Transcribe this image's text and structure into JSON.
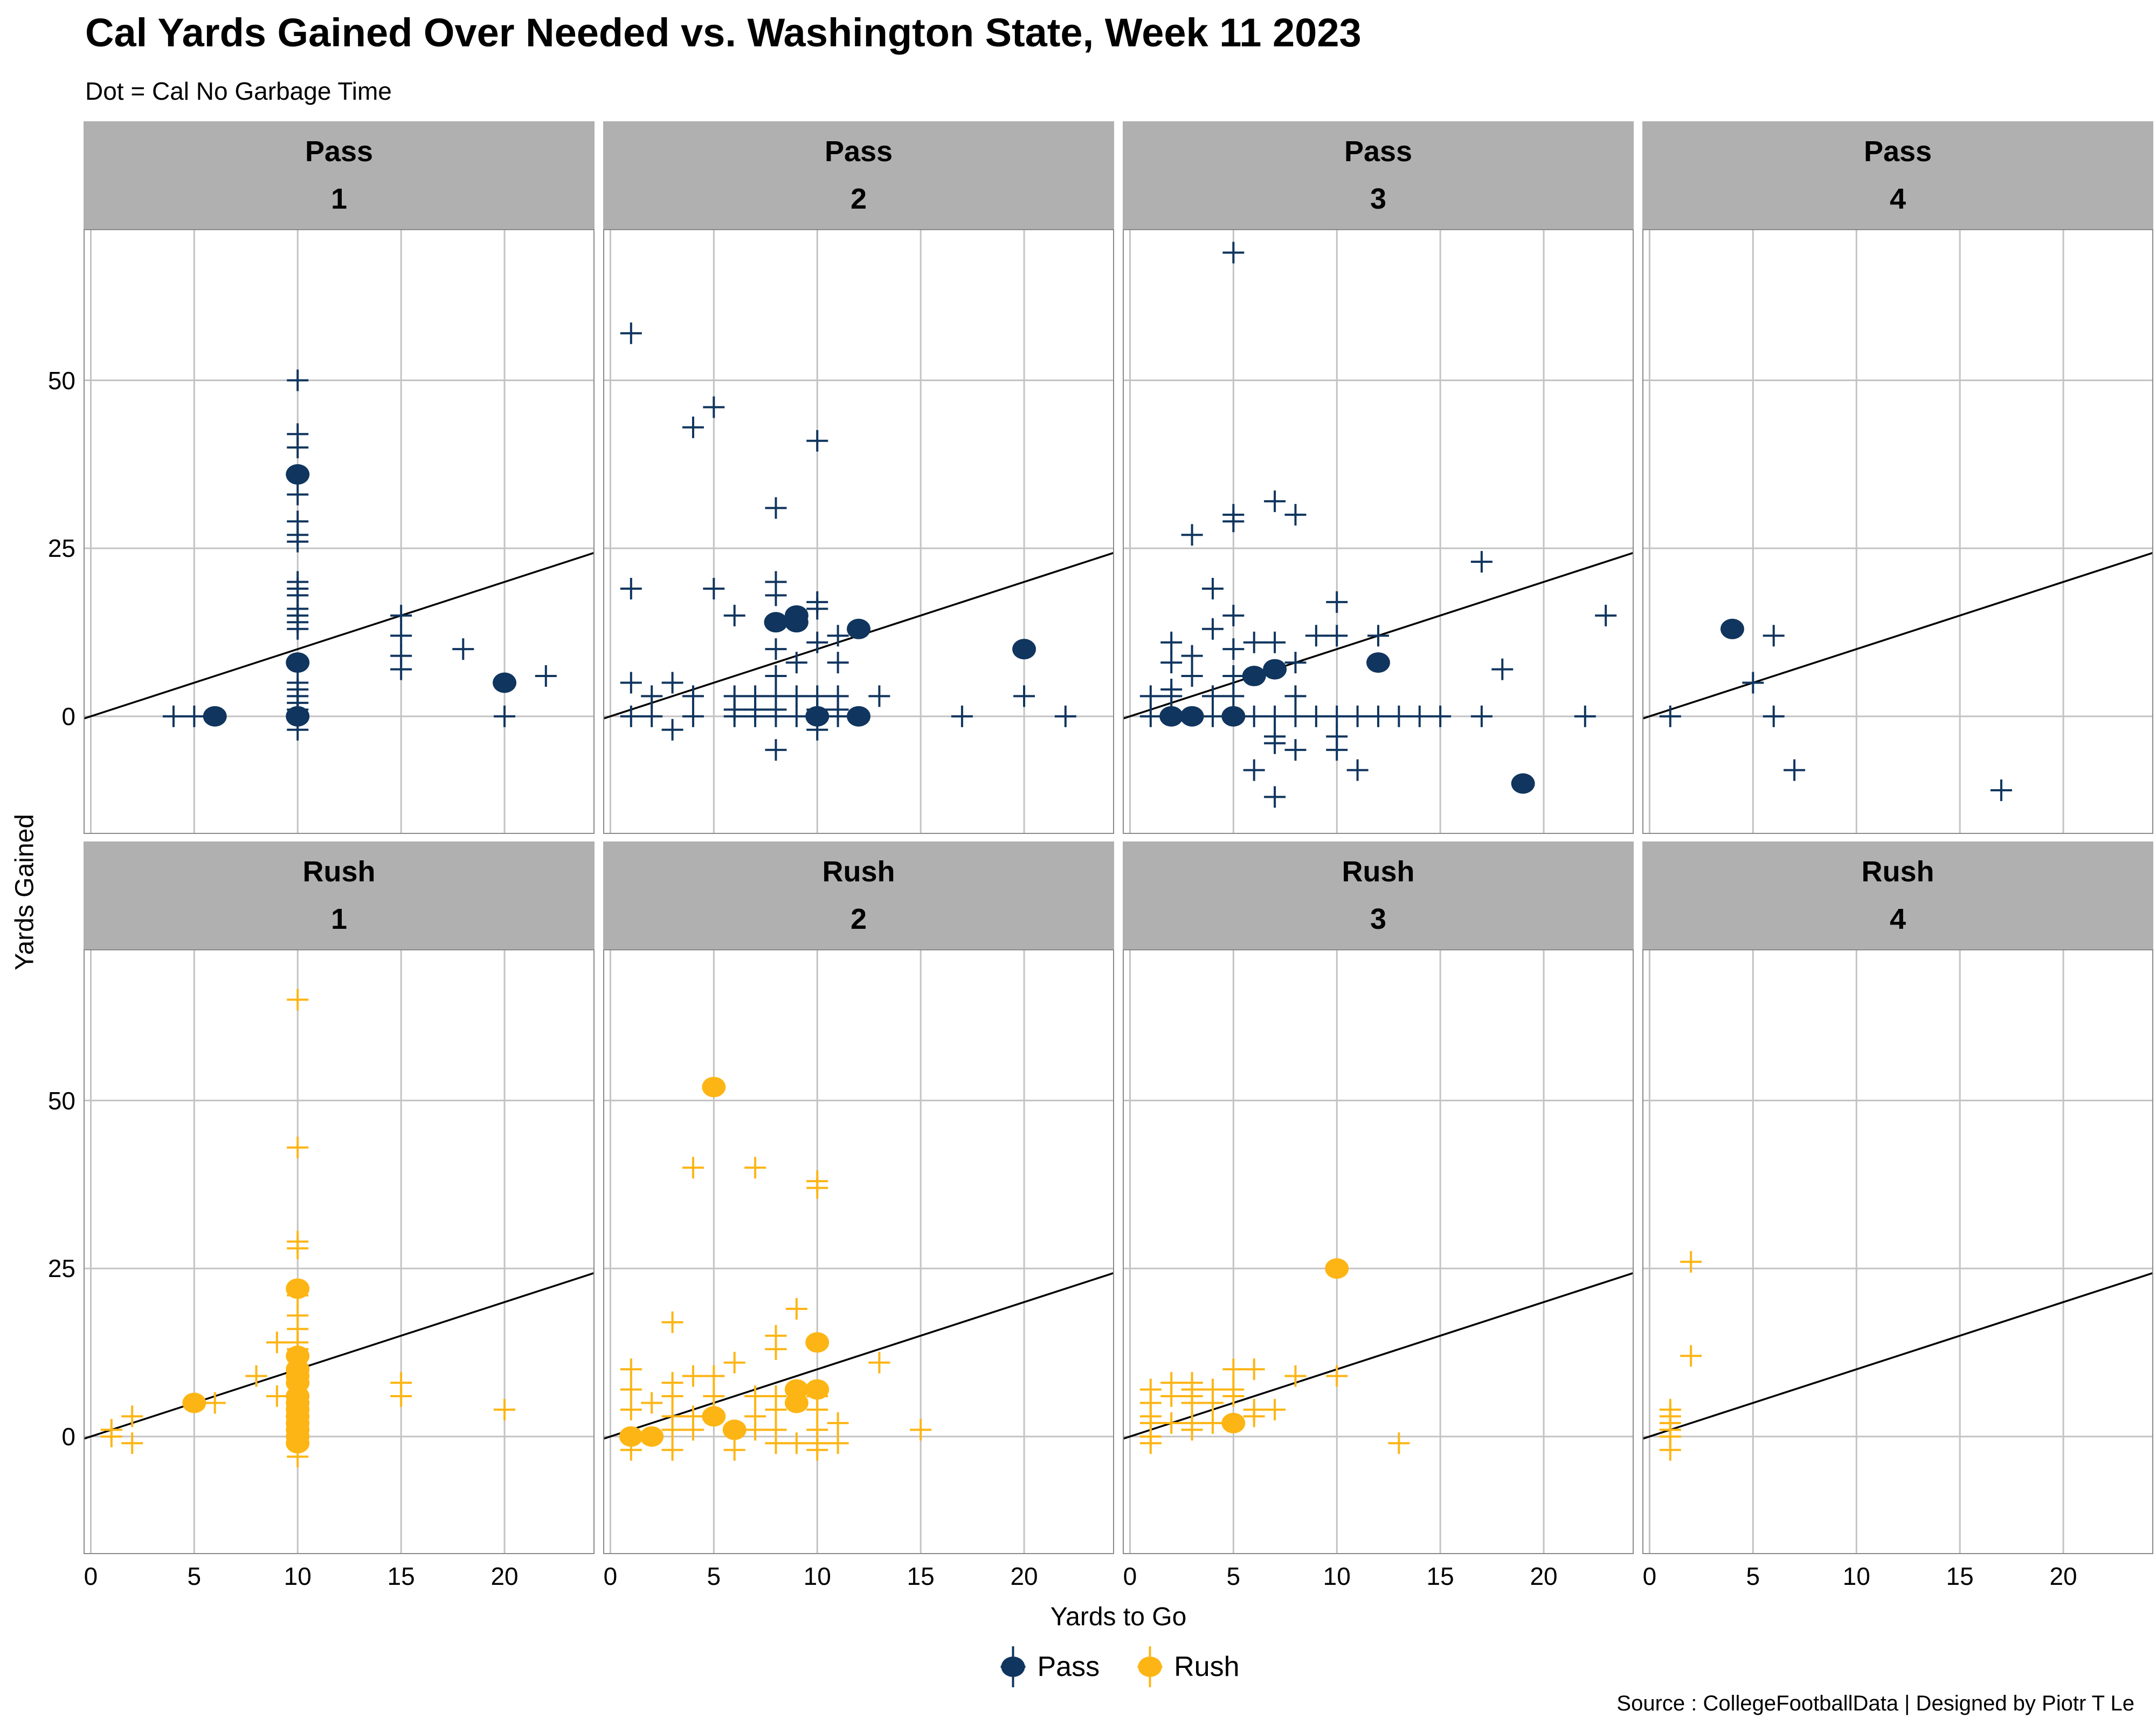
{
  "title": "Cal Yards Gained Over Needed vs. Washington State, Week 11 2023",
  "subtitle": "Dot = Cal No Garbage Time",
  "caption": "Source : CollegeFootballData | Designed by Piotr T Le",
  "legend": [
    {
      "label": "Pass",
      "color": "#10355E"
    },
    {
      "label": "Rush",
      "color": "#FDB515"
    }
  ],
  "colors": {
    "pass": "#10355E",
    "rush": "#FDB515",
    "strip_bg": "#B0B0B0",
    "gridline": "#C3C3C3",
    "panel_border": "#8A8A8A",
    "reference_line": "#000000"
  },
  "chart_data": {
    "type": "scatter",
    "title": "Cal Yards Gained Over Needed vs. Washington State, Week 11 2023",
    "subtitle": "Dot = Cal No Garbage Time",
    "xlabel": "Yards to Go",
    "ylabel": "Yards Gained",
    "x_ticks": [
      0,
      5,
      10,
      15,
      20
    ],
    "y_ticks": [
      0,
      25,
      50
    ],
    "xlim": [
      -0.35,
      24.35
    ],
    "ylim": [
      -17.5,
      72.5
    ],
    "grid": "major-only",
    "legend_position": "bottom",
    "reference_line": "y = x (yards gained = yards to go)",
    "marker_note": "dot = no garbage time play, plus = other play",
    "facet_rows": [
      "Pass",
      "Rush"
    ],
    "facet_cols": [
      "1",
      "2",
      "3",
      "4"
    ],
    "facets": [
      {
        "group": "Pass",
        "down": "1",
        "dots": [
          [
            6,
            0
          ],
          [
            10,
            36
          ],
          [
            10,
            8
          ],
          [
            10,
            0
          ],
          [
            20,
            5
          ]
        ],
        "plus": [
          [
            4,
            0
          ],
          [
            5,
            0
          ],
          [
            10,
            50
          ],
          [
            10,
            42
          ],
          [
            10,
            40
          ],
          [
            10,
            33
          ],
          [
            10,
            29
          ],
          [
            10,
            27
          ],
          [
            10,
            26
          ],
          [
            10,
            20
          ],
          [
            10,
            19
          ],
          [
            10,
            18
          ],
          [
            10,
            16
          ],
          [
            10,
            15
          ],
          [
            10,
            14
          ],
          [
            10,
            13
          ],
          [
            10,
            5
          ],
          [
            10,
            4
          ],
          [
            10,
            3
          ],
          [
            10,
            2
          ],
          [
            10,
            1
          ],
          [
            10,
            0
          ],
          [
            10,
            -2
          ],
          [
            15,
            15
          ],
          [
            15,
            12
          ],
          [
            15,
            9
          ],
          [
            15,
            7
          ],
          [
            18,
            10
          ],
          [
            20,
            0
          ],
          [
            22,
            6
          ]
        ]
      },
      {
        "group": "Pass",
        "down": "2",
        "dots": [
          [
            8,
            14
          ],
          [
            9,
            15
          ],
          [
            9,
            14
          ],
          [
            12,
            13
          ],
          [
            10,
            0
          ],
          [
            12,
            0
          ],
          [
            20,
            10
          ]
        ],
        "plus": [
          [
            1,
            57
          ],
          [
            5,
            46
          ],
          [
            4,
            43
          ],
          [
            10,
            41
          ],
          [
            8,
            31
          ],
          [
            8,
            20
          ],
          [
            1,
            19
          ],
          [
            5,
            19
          ],
          [
            8,
            18
          ],
          [
            10,
            17
          ],
          [
            10,
            16
          ],
          [
            6,
            15
          ],
          [
            11,
            12
          ],
          [
            10,
            11
          ],
          [
            8,
            10
          ],
          [
            9,
            8
          ],
          [
            11,
            8
          ],
          [
            8,
            6
          ],
          [
            1,
            5
          ],
          [
            3,
            5
          ],
          [
            2,
            3
          ],
          [
            4,
            3
          ],
          [
            6,
            3
          ],
          [
            7,
            3
          ],
          [
            8,
            3
          ],
          [
            9,
            3
          ],
          [
            10,
            3
          ],
          [
            11,
            3
          ],
          [
            13,
            3
          ],
          [
            20,
            3
          ],
          [
            6,
            1
          ],
          [
            7,
            1
          ],
          [
            8,
            1
          ],
          [
            10,
            1
          ],
          [
            11,
            1
          ],
          [
            1,
            0
          ],
          [
            2,
            0
          ],
          [
            4,
            0
          ],
          [
            6,
            0
          ],
          [
            7,
            0
          ],
          [
            8,
            0
          ],
          [
            9,
            0
          ],
          [
            11,
            0
          ],
          [
            17,
            0
          ],
          [
            22,
            0
          ],
          [
            3,
            -2
          ],
          [
            10,
            -2
          ],
          [
            8,
            -5
          ]
        ]
      },
      {
        "group": "Pass",
        "down": "3",
        "dots": [
          [
            2,
            0
          ],
          [
            3,
            0
          ],
          [
            5,
            0
          ],
          [
            6,
            6
          ],
          [
            7,
            7
          ],
          [
            12,
            8
          ],
          [
            19,
            -10
          ]
        ],
        "plus": [
          [
            5,
            69
          ],
          [
            7,
            32
          ],
          [
            5,
            30
          ],
          [
            8,
            30
          ],
          [
            5,
            29
          ],
          [
            3,
            27
          ],
          [
            17,
            23
          ],
          [
            4,
            19
          ],
          [
            10,
            17
          ],
          [
            5,
            15
          ],
          [
            23,
            15
          ],
          [
            4,
            13
          ],
          [
            9,
            12
          ],
          [
            10,
            12
          ],
          [
            12,
            12
          ],
          [
            2,
            11
          ],
          [
            6,
            11
          ],
          [
            7,
            11
          ],
          [
            5,
            10
          ],
          [
            3,
            9
          ],
          [
            2,
            8
          ],
          [
            8,
            8
          ],
          [
            18,
            7
          ],
          [
            3,
            6
          ],
          [
            5,
            6
          ],
          [
            2,
            4
          ],
          [
            1,
            3
          ],
          [
            2,
            3
          ],
          [
            4,
            3
          ],
          [
            5,
            3
          ],
          [
            8,
            3
          ],
          [
            1,
            0
          ],
          [
            4,
            0
          ],
          [
            6,
            0
          ],
          [
            7,
            0
          ],
          [
            8,
            0
          ],
          [
            9,
            0
          ],
          [
            10,
            0
          ],
          [
            11,
            0
          ],
          [
            12,
            0
          ],
          [
            13,
            0
          ],
          [
            14,
            0
          ],
          [
            15,
            0
          ],
          [
            17,
            0
          ],
          [
            22,
            0
          ],
          [
            7,
            -3
          ],
          [
            10,
            -3
          ],
          [
            7,
            -4
          ],
          [
            8,
            -5
          ],
          [
            10,
            -5
          ],
          [
            6,
            -8
          ],
          [
            11,
            -8
          ],
          [
            7,
            -12
          ]
        ]
      },
      {
        "group": "Pass",
        "down": "4",
        "dots": [
          [
            4,
            13
          ]
        ],
        "plus": [
          [
            6,
            12
          ],
          [
            5,
            5
          ],
          [
            1,
            0
          ],
          [
            6,
            0
          ],
          [
            7,
            -8
          ],
          [
            17,
            -11
          ]
        ]
      },
      {
        "group": "Rush",
        "down": "1",
        "dots": [
          [
            5,
            5
          ],
          [
            10,
            22
          ],
          [
            10,
            12
          ],
          [
            10,
            10
          ],
          [
            10,
            9
          ],
          [
            10,
            8
          ],
          [
            10,
            6
          ],
          [
            10,
            5
          ],
          [
            10,
            4
          ],
          [
            10,
            3
          ],
          [
            10,
            2
          ],
          [
            10,
            1
          ],
          [
            10,
            0
          ],
          [
            10,
            -1
          ]
        ],
        "plus": [
          [
            10,
            65
          ],
          [
            10,
            43
          ],
          [
            10,
            29
          ],
          [
            10,
            28
          ],
          [
            10,
            21
          ],
          [
            10,
            18
          ],
          [
            10,
            16
          ],
          [
            10,
            14
          ],
          [
            9,
            14
          ],
          [
            10,
            13
          ],
          [
            8,
            9
          ],
          [
            15,
            8
          ],
          [
            9,
            6
          ],
          [
            15,
            6
          ],
          [
            6,
            5
          ],
          [
            20,
            4
          ],
          [
            2,
            3
          ],
          [
            1,
            1
          ],
          [
            1,
            0
          ],
          [
            2,
            -1
          ],
          [
            10,
            -3
          ]
        ]
      },
      {
        "group": "Rush",
        "down": "2",
        "dots": [
          [
            5,
            52
          ],
          [
            10,
            14
          ],
          [
            9,
            7
          ],
          [
            10,
            7
          ],
          [
            9,
            5
          ],
          [
            5,
            3
          ],
          [
            6,
            1
          ],
          [
            1,
            0
          ],
          [
            2,
            0
          ]
        ],
        "plus": [
          [
            4,
            40
          ],
          [
            7,
            40
          ],
          [
            10,
            38
          ],
          [
            10,
            37
          ],
          [
            9,
            19
          ],
          [
            3,
            17
          ],
          [
            8,
            15
          ],
          [
            8,
            13
          ],
          [
            6,
            11
          ],
          [
            13,
            11
          ],
          [
            1,
            10
          ],
          [
            4,
            9
          ],
          [
            5,
            9
          ],
          [
            3,
            8
          ],
          [
            1,
            7
          ],
          [
            2,
            5
          ],
          [
            5,
            6
          ],
          [
            7,
            6
          ],
          [
            8,
            6
          ],
          [
            10,
            6
          ],
          [
            3,
            6
          ],
          [
            1,
            4
          ],
          [
            8,
            4
          ],
          [
            10,
            4
          ],
          [
            3,
            3
          ],
          [
            4,
            3
          ],
          [
            7,
            3
          ],
          [
            3,
            1
          ],
          [
            4,
            1
          ],
          [
            7,
            1
          ],
          [
            8,
            1
          ],
          [
            10,
            1
          ],
          [
            11,
            2
          ],
          [
            15,
            1
          ],
          [
            1,
            -2
          ],
          [
            3,
            -2
          ],
          [
            6,
            -2
          ],
          [
            8,
            -1
          ],
          [
            9,
            -1
          ],
          [
            10,
            -1
          ],
          [
            10,
            -2
          ],
          [
            11,
            -1
          ]
        ]
      },
      {
        "group": "Rush",
        "down": "3",
        "dots": [
          [
            10,
            25
          ],
          [
            5,
            2
          ]
        ],
        "plus": [
          [
            5,
            10
          ],
          [
            6,
            10
          ],
          [
            8,
            9
          ],
          [
            10,
            9
          ],
          [
            2,
            8
          ],
          [
            3,
            8
          ],
          [
            1,
            7
          ],
          [
            3,
            7
          ],
          [
            4,
            7
          ],
          [
            5,
            7
          ],
          [
            2,
            6
          ],
          [
            3,
            6
          ],
          [
            5,
            6
          ],
          [
            1,
            5
          ],
          [
            3,
            5
          ],
          [
            4,
            5
          ],
          [
            6,
            4
          ],
          [
            7,
            4
          ],
          [
            1,
            3
          ],
          [
            6,
            3
          ],
          [
            1,
            2
          ],
          [
            2,
            2
          ],
          [
            3,
            2
          ],
          [
            4,
            2
          ],
          [
            3,
            1
          ],
          [
            1,
            0
          ],
          [
            1,
            -1
          ],
          [
            13,
            -1
          ]
        ]
      },
      {
        "group": "Rush",
        "down": "4",
        "dots": [],
        "plus": [
          [
            2,
            26
          ],
          [
            2,
            12
          ],
          [
            1,
            4
          ],
          [
            1,
            3
          ],
          [
            1,
            2
          ],
          [
            1,
            1
          ],
          [
            1,
            0
          ],
          [
            1,
            -2
          ]
        ]
      }
    ]
  }
}
